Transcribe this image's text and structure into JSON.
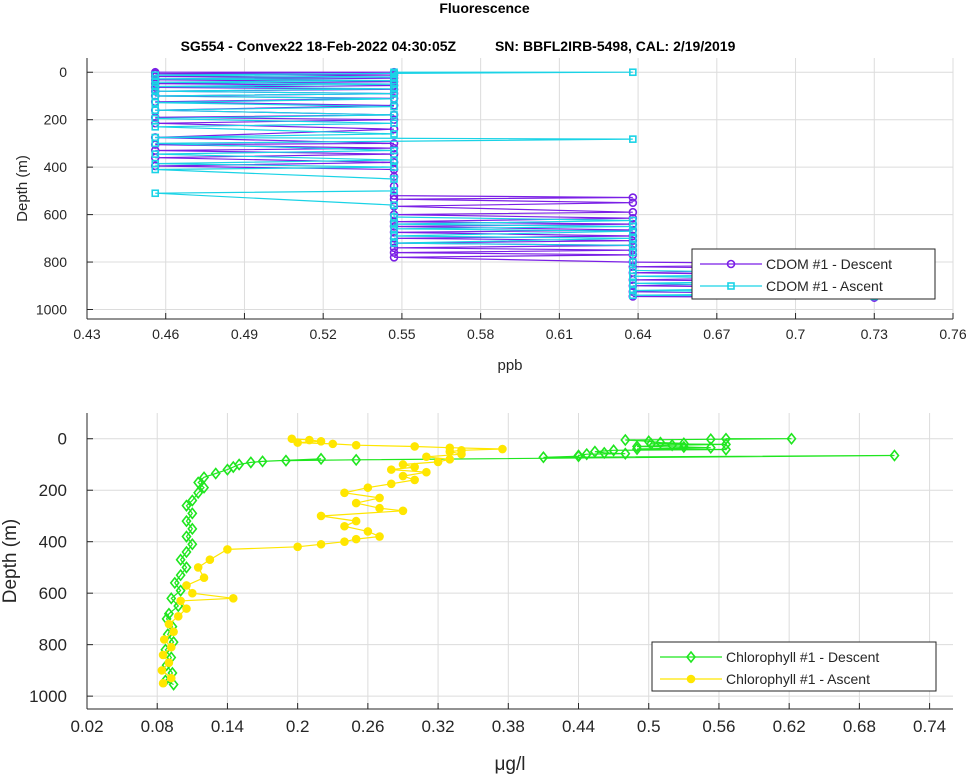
{
  "figure": {
    "title": "Fluorescence",
    "subtitle": "SG554 - Convex22 18-Feb-2022 04:30:05Z          SN: BBFL2IRB-5498, CAL: 2/19/2019"
  },
  "chart_data": [
    {
      "type": "line",
      "title": "",
      "xlabel": "ppb",
      "ylabel": "Depth (m)",
      "xlim": [
        0.43,
        0.76
      ],
      "ylim": [
        1040,
        -60
      ],
      "y_reversed": true,
      "xticks": [
        "0.43",
        "0.46",
        "0.49",
        "0.52",
        "0.55",
        "0.58",
        "0.61",
        "0.64",
        "0.67",
        "0.7",
        "0.73",
        "0.76"
      ],
      "yticks": [
        "0",
        "200",
        "400",
        "600",
        "800",
        "1000"
      ],
      "grid": true,
      "legend_position": "bottom-right",
      "series": [
        {
          "name": "CDOM #1 - Descent",
          "color": "#7a1fe6",
          "marker": "circle",
          "points": [
            [
              0.456,
              0
            ],
            [
              0.547,
              0
            ],
            [
              0.456,
              6
            ],
            [
              0.547,
              12
            ],
            [
              0.456,
              18
            ],
            [
              0.547,
              25
            ],
            [
              0.456,
              32
            ],
            [
              0.547,
              40
            ],
            [
              0.456,
              48
            ],
            [
              0.547,
              56
            ],
            [
              0.456,
              64
            ],
            [
              0.547,
              72
            ],
            [
              0.456,
              80
            ],
            [
              0.547,
              90
            ],
            [
              0.456,
              100
            ],
            [
              0.547,
              110
            ],
            [
              0.456,
              125
            ],
            [
              0.547,
              140
            ],
            [
              0.456,
              160
            ],
            [
              0.547,
              180
            ],
            [
              0.456,
              190
            ],
            [
              0.547,
              200
            ],
            [
              0.456,
              215
            ],
            [
              0.547,
              240
            ],
            [
              0.456,
              275
            ],
            [
              0.547,
              300
            ],
            [
              0.456,
              305
            ],
            [
              0.547,
              320
            ],
            [
              0.456,
              330
            ],
            [
              0.547,
              345
            ],
            [
              0.456,
              360
            ],
            [
              0.547,
              380
            ],
            [
              0.456,
              395
            ],
            [
              0.547,
              410
            ],
            [
              0.547,
              440
            ],
            [
              0.547,
              480
            ],
            [
              0.547,
              520
            ],
            [
              0.638,
              528
            ],
            [
              0.547,
              535
            ],
            [
              0.638,
              550
            ],
            [
              0.547,
              565
            ],
            [
              0.638,
              590
            ],
            [
              0.547,
              600
            ],
            [
              0.638,
              615
            ],
            [
              0.547,
              630
            ],
            [
              0.638,
              640
            ],
            [
              0.547,
              650
            ],
            [
              0.638,
              665
            ],
            [
              0.547,
              675
            ],
            [
              0.638,
              690
            ],
            [
              0.547,
              700
            ],
            [
              0.638,
              710
            ],
            [
              0.547,
              720
            ],
            [
              0.638,
              730
            ],
            [
              0.547,
              740
            ],
            [
              0.638,
              750
            ],
            [
              0.547,
              760
            ],
            [
              0.638,
              770
            ],
            [
              0.547,
              780
            ],
            [
              0.638,
              800
            ],
            [
              0.73,
              808
            ],
            [
              0.638,
              820
            ],
            [
              0.73,
              830
            ],
            [
              0.638,
              845
            ],
            [
              0.73,
              860
            ],
            [
              0.638,
              875
            ],
            [
              0.73,
              885
            ],
            [
              0.638,
              900
            ],
            [
              0.73,
              910
            ],
            [
              0.638,
              925
            ],
            [
              0.73,
              935
            ],
            [
              0.638,
              945
            ],
            [
              0.73,
              950
            ]
          ]
        },
        {
          "name": "CDOM #1 - Ascent",
          "color": "#1ad3e6",
          "marker": "square",
          "points": [
            [
              0.73,
              945
            ],
            [
              0.638,
              940
            ],
            [
              0.73,
              930
            ],
            [
              0.638,
              920
            ],
            [
              0.73,
              905
            ],
            [
              0.638,
              890
            ],
            [
              0.73,
              875
            ],
            [
              0.638,
              860
            ],
            [
              0.73,
              850
            ],
            [
              0.638,
              835
            ],
            [
              0.638,
              800
            ],
            [
              0.638,
              760
            ],
            [
              0.638,
              730
            ],
            [
              0.547,
              720
            ],
            [
              0.638,
              700
            ],
            [
              0.547,
              690
            ],
            [
              0.638,
              670
            ],
            [
              0.547,
              660
            ],
            [
              0.638,
              650
            ],
            [
              0.547,
              640
            ],
            [
              0.638,
              625
            ],
            [
              0.547,
              610
            ],
            [
              0.547,
              560
            ],
            [
              0.456,
              510
            ],
            [
              0.547,
              500
            ],
            [
              0.547,
              450
            ],
            [
              0.456,
              410
            ],
            [
              0.547,
              400
            ],
            [
              0.456,
              385
            ],
            [
              0.547,
              370
            ],
            [
              0.456,
              345
            ],
            [
              0.547,
              330
            ],
            [
              0.456,
              300
            ],
            [
              0.638,
              282
            ],
            [
              0.456,
              275
            ],
            [
              0.547,
              260
            ],
            [
              0.456,
              230
            ],
            [
              0.547,
              215
            ],
            [
              0.456,
              195
            ],
            [
              0.547,
              180
            ],
            [
              0.456,
              160
            ],
            [
              0.547,
              145
            ],
            [
              0.456,
              128
            ],
            [
              0.547,
              112
            ],
            [
              0.456,
              100
            ],
            [
              0.547,
              90
            ],
            [
              0.456,
              80
            ],
            [
              0.547,
              70
            ],
            [
              0.456,
              60
            ],
            [
              0.547,
              50
            ],
            [
              0.456,
              42
            ],
            [
              0.547,
              35
            ],
            [
              0.456,
              28
            ],
            [
              0.547,
              20
            ],
            [
              0.456,
              12
            ],
            [
              0.547,
              5
            ],
            [
              0.638,
              0
            ],
            [
              0.547,
              0
            ]
          ]
        }
      ]
    },
    {
      "type": "line",
      "title": "",
      "xlabel": "μg/l",
      "ylabel": "Depth (m)",
      "xlim": [
        0.02,
        0.76
      ],
      "ylim": [
        1050,
        -100
      ],
      "y_reversed": true,
      "xticks": [
        "0.02",
        "0.08",
        "0.14",
        "0.2",
        "0.26",
        "0.32",
        "0.38",
        "0.44",
        "0.5",
        "0.56",
        "0.62",
        "0.68",
        "0.74"
      ],
      "yticks": [
        "0",
        "200",
        "400",
        "600",
        "800",
        "1000"
      ],
      "grid": true,
      "legend_position": "bottom-right",
      "series": [
        {
          "name": "Chlorophyll #1 - Descent",
          "color": "#1fe61f",
          "marker": "diamond",
          "points": [
            [
              0.566,
              0
            ],
            [
              0.622,
              0
            ],
            [
              0.553,
              2
            ],
            [
              0.48,
              5
            ],
            [
              0.5,
              10
            ],
            [
              0.51,
              15
            ],
            [
              0.53,
              18
            ],
            [
              0.502,
              20
            ],
            [
              0.566,
              22
            ],
            [
              0.52,
              25
            ],
            [
              0.49,
              30
            ],
            [
              0.53,
              32
            ],
            [
              0.553,
              35
            ],
            [
              0.49,
              40
            ],
            [
              0.566,
              42
            ],
            [
              0.47,
              45
            ],
            [
              0.454,
              50
            ],
            [
              0.462,
              55
            ],
            [
              0.48,
              58
            ],
            [
              0.447,
              60
            ],
            [
              0.44,
              65
            ],
            [
              0.44,
              68
            ],
            [
              0.41,
              72
            ],
            [
              0.71,
              65
            ],
            [
              0.25,
              82
            ],
            [
              0.19,
              85
            ],
            [
              0.22,
              78
            ],
            [
              0.17,
              88
            ],
            [
              0.16,
              92
            ],
            [
              0.15,
              100
            ],
            [
              0.145,
              110
            ],
            [
              0.14,
              120
            ],
            [
              0.13,
              135
            ],
            [
              0.12,
              150
            ],
            [
              0.115,
              170
            ],
            [
              0.12,
              190
            ],
            [
              0.115,
              210
            ],
            [
              0.11,
              240
            ],
            [
              0.105,
              260
            ],
            [
              0.11,
              290
            ],
            [
              0.105,
              320
            ],
            [
              0.11,
              350
            ],
            [
              0.105,
              380
            ],
            [
              0.11,
              410
            ],
            [
              0.105,
              440
            ],
            [
              0.1,
              470
            ],
            [
              0.105,
              500
            ],
            [
              0.1,
              530
            ],
            [
              0.095,
              560
            ],
            [
              0.1,
              590
            ],
            [
              0.092,
              620
            ],
            [
              0.098,
              650
            ],
            [
              0.09,
              680
            ],
            [
              0.088,
              700
            ],
            [
              0.093,
              730
            ],
            [
              0.089,
              760
            ],
            [
              0.094,
              790
            ],
            [
              0.087,
              820
            ],
            [
              0.092,
              850
            ],
            [
              0.088,
              880
            ],
            [
              0.093,
              910
            ],
            [
              0.087,
              940
            ],
            [
              0.094,
              955
            ]
          ]
        },
        {
          "name": "Chlorophyll #1 - Ascent",
          "color": "#ffe600",
          "marker": "circle",
          "points": [
            [
              0.085,
              950
            ],
            [
              0.092,
              930
            ],
            [
              0.084,
              900
            ],
            [
              0.09,
              870
            ],
            [
              0.085,
              840
            ],
            [
              0.092,
              810
            ],
            [
              0.086,
              780
            ],
            [
              0.094,
              750
            ],
            [
              0.09,
              720
            ],
            [
              0.098,
              690
            ],
            [
              0.105,
              660
            ],
            [
              0.1,
              630
            ],
            [
              0.145,
              620
            ],
            [
              0.11,
              600
            ],
            [
              0.105,
              570
            ],
            [
              0.12,
              540
            ],
            [
              0.115,
              500
            ],
            [
              0.125,
              470
            ],
            [
              0.14,
              430
            ],
            [
              0.2,
              420
            ],
            [
              0.22,
              410
            ],
            [
              0.24,
              400
            ],
            [
              0.25,
              390
            ],
            [
              0.27,
              380
            ],
            [
              0.26,
              360
            ],
            [
              0.24,
              340
            ],
            [
              0.25,
              320
            ],
            [
              0.22,
              300
            ],
            [
              0.29,
              280
            ],
            [
              0.27,
              270
            ],
            [
              0.25,
              250
            ],
            [
              0.27,
              230
            ],
            [
              0.24,
              210
            ],
            [
              0.26,
              190
            ],
            [
              0.28,
              175
            ],
            [
              0.3,
              160
            ],
            [
              0.29,
              145
            ],
            [
              0.31,
              130
            ],
            [
              0.28,
              120
            ],
            [
              0.3,
              110
            ],
            [
              0.29,
              100
            ],
            [
              0.32,
              90
            ],
            [
              0.33,
              80
            ],
            [
              0.31,
              70
            ],
            [
              0.34,
              60
            ],
            [
              0.33,
              50
            ],
            [
              0.34,
              45
            ],
            [
              0.375,
              40
            ],
            [
              0.33,
              35
            ],
            [
              0.3,
              30
            ],
            [
              0.25,
              25
            ],
            [
              0.23,
              20
            ],
            [
              0.2,
              15
            ],
            [
              0.22,
              10
            ],
            [
              0.21,
              5
            ],
            [
              0.195,
              0
            ]
          ]
        }
      ]
    }
  ]
}
